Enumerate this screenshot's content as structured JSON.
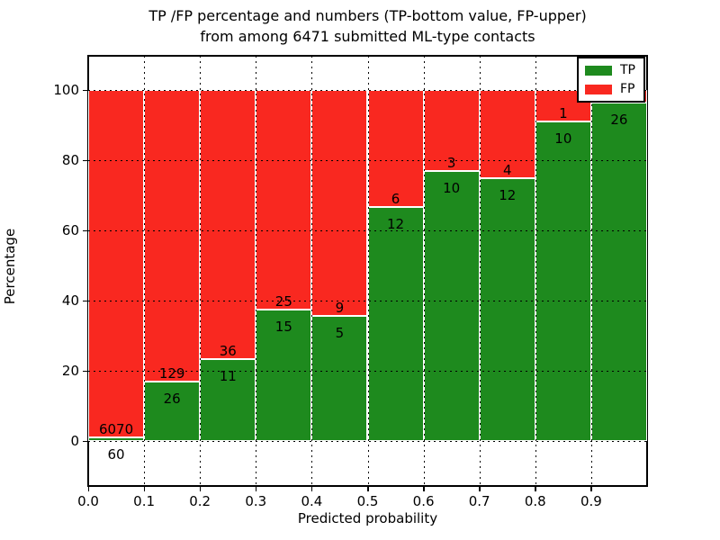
{
  "title": {
    "line1": "TP /FP percentage and numbers (TP-bottom value, FP-upper)",
    "line2": "from among 6471 submitted ML-type contacts"
  },
  "axes": {
    "xlabel": "Predicted probability",
    "ylabel": "Percentage"
  },
  "legend": {
    "entries": [
      {
        "label": "TP",
        "color": "#1e8a1e"
      },
      {
        "label": "FP",
        "color": "#f92820"
      }
    ]
  },
  "chart_data": {
    "type": "bar",
    "stacked": true,
    "title": "TP /FP percentage and numbers (TP-bottom value, FP-upper) from among 6471 submitted ML-type contacts",
    "xlabel": "Predicted probability",
    "ylabel": "Percentage",
    "total_contacts": 6471,
    "bin_width": 0.1,
    "categories": [
      "0.0-0.1",
      "0.1-0.2",
      "0.2-0.3",
      "0.3-0.4",
      "0.4-0.5",
      "0.5-0.6",
      "0.6-0.7",
      "0.7-0.8",
      "0.8-0.9",
      "0.9-1.0"
    ],
    "series": [
      {
        "name": "TP",
        "color": "#1e8a1e",
        "counts": [
          60,
          26,
          11,
          15,
          5,
          12,
          10,
          12,
          10,
          26
        ]
      },
      {
        "name": "FP",
        "color": "#f92820",
        "counts": [
          6070,
          129,
          36,
          25,
          9,
          6,
          3,
          4,
          1,
          null
        ]
      }
    ],
    "tp_percent": [
      1.0,
      16.8,
      23.4,
      37.5,
      35.7,
      66.7,
      76.9,
      75.0,
      90.9,
      96.3
    ],
    "yticks": [
      0,
      20,
      40,
      60,
      80,
      100
    ],
    "xticks": [
      "0.0",
      "0.1",
      "0.2",
      "0.3",
      "0.4",
      "0.5",
      "0.6",
      "0.7",
      "0.8",
      "0.9"
    ],
    "xlim": [
      0.0,
      1.0
    ],
    "ylim": [
      -12.8,
      109.7
    ],
    "grid": true,
    "legend_position": "upper right"
  }
}
